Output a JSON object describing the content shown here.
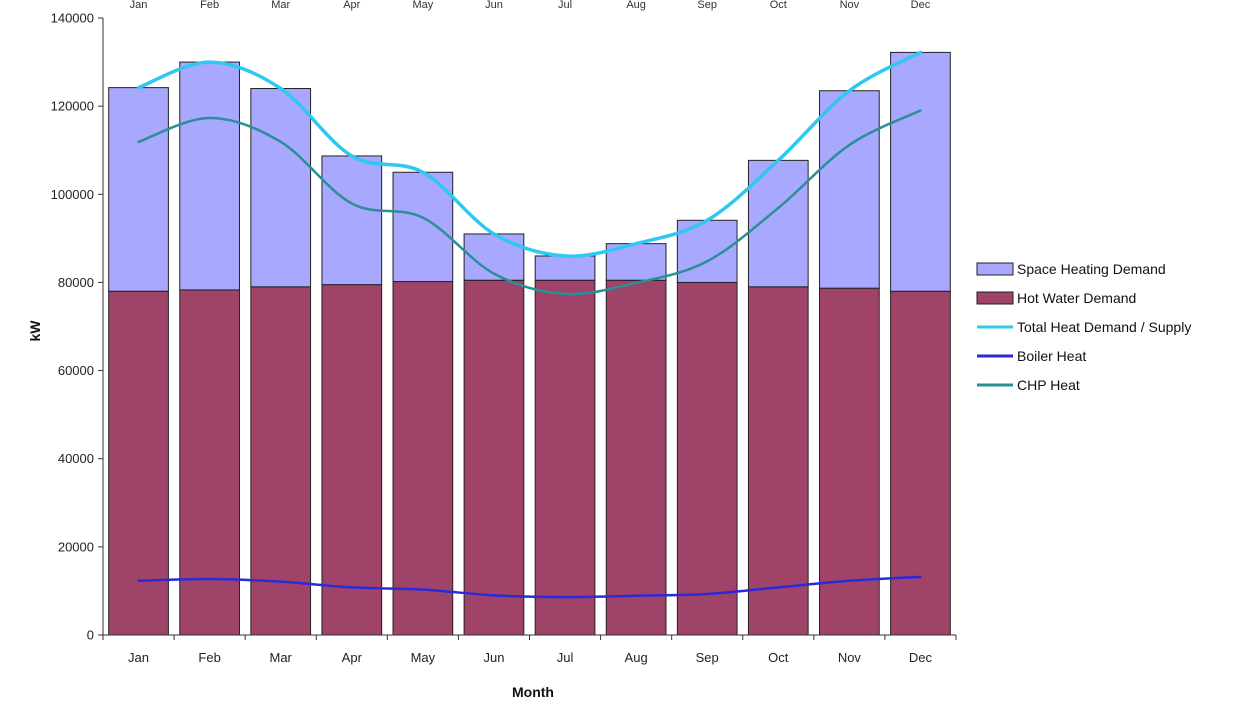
{
  "chart_data": {
    "type": "bar",
    "title": "",
    "xlabel": "Month",
    "ylabel": "kW",
    "ylim": [
      0,
      140000
    ],
    "yticks": [
      "0",
      "20000",
      "40000",
      "60000",
      "80000",
      "100000",
      "120000",
      "140000"
    ],
    "categories": [
      "Jan",
      "Feb",
      "Mar",
      "Apr",
      "May",
      "Jun",
      "Jul",
      "Aug",
      "Sep",
      "Oct",
      "Nov",
      "Dec"
    ],
    "top_categories": [
      "Jan",
      "Feb",
      "Mar",
      "Apr",
      "May",
      "Jun",
      "Jul",
      "Aug",
      "Sep",
      "Oct",
      "Nov",
      "Dec"
    ],
    "stacked": true,
    "bar_series": [
      {
        "name": "Hot Water Demand",
        "color": "#a04368",
        "values": [
          78000,
          78300,
          79000,
          79500,
          80200,
          80500,
          80500,
          80500,
          80000,
          79000,
          78700,
          78000
        ]
      },
      {
        "name": "Space Heating Demand",
        "color": "#a8a8ff",
        "values": [
          46200,
          51700,
          45000,
          29200,
          24800,
          10500,
          5500,
          8300,
          14100,
          28700,
          44800,
          54200
        ]
      }
    ],
    "line_series": [
      {
        "name": "Total Heat Demand / Supply",
        "color": "#2ec8f0",
        "values": [
          124200,
          130000,
          124000,
          108700,
          105000,
          91000,
          86000,
          88800,
          94100,
          107700,
          123500,
          132200
        ]
      },
      {
        "name": "Boiler Heat",
        "color": "#2a2ad8",
        "values": [
          12300,
          12700,
          12100,
          10800,
          10300,
          9000,
          8600,
          8900,
          9300,
          10800,
          12300,
          13200
        ]
      },
      {
        "name": "CHP Heat",
        "color": "#2a8f96",
        "values": [
          111900,
          117300,
          111900,
          97900,
          94700,
          82000,
          77400,
          79900,
          84800,
          96900,
          111200,
          119000
        ]
      }
    ],
    "legend": {
      "position": "right",
      "entries": [
        {
          "name": "Space Heating Demand",
          "kind": "box",
          "color": "#a8a8ff"
        },
        {
          "name": "Hot Water Demand",
          "kind": "box",
          "color": "#a04368"
        },
        {
          "name": "Total Heat Demand / Supply",
          "kind": "line",
          "color": "#2ec8f0"
        },
        {
          "name": "Boiler Heat",
          "kind": "line",
          "color": "#2a2ad8"
        },
        {
          "name": "CHP Heat",
          "kind": "line",
          "color": "#2a8f96"
        }
      ]
    },
    "grid": false
  }
}
